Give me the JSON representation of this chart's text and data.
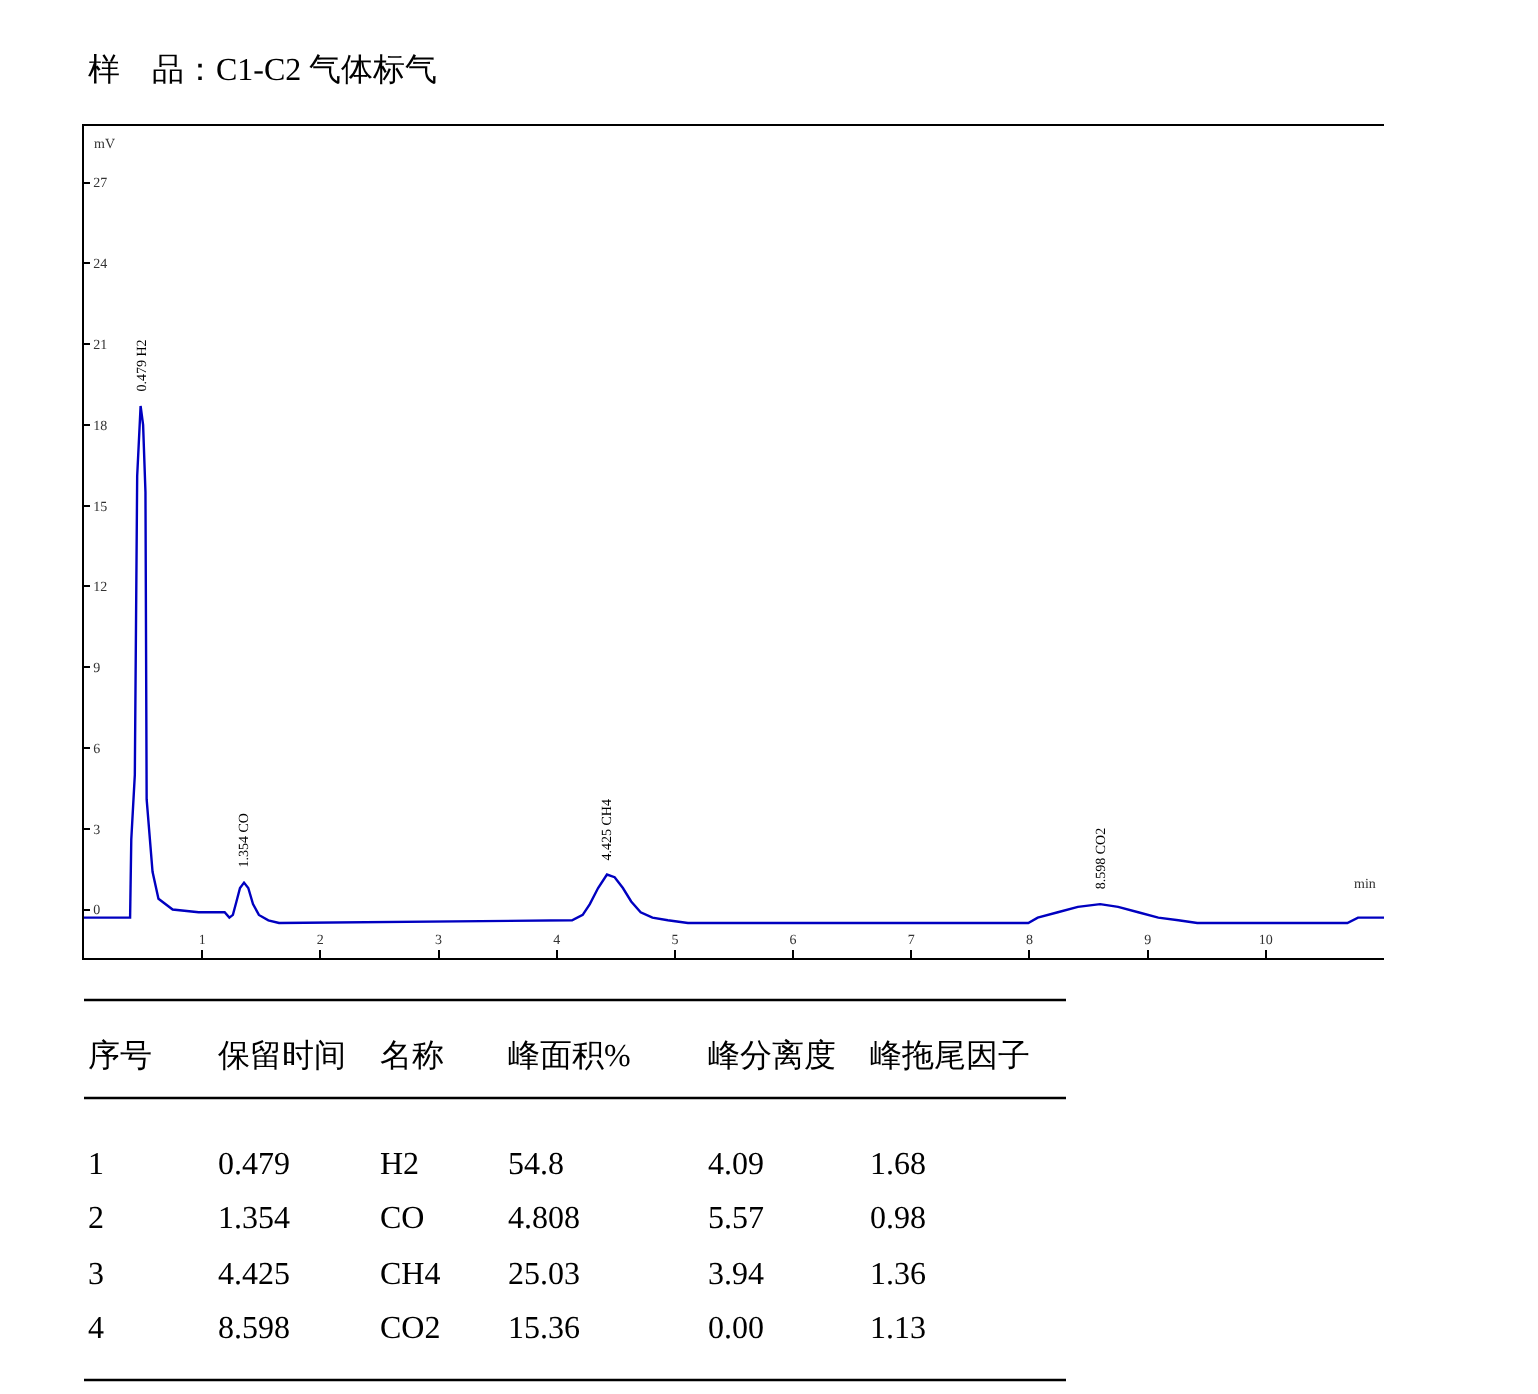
{
  "chart_data": {
    "type": "line",
    "subtitle": "样    品：C1-C2 气体标气",
    "xlabel": "min",
    "ylabel": "mV",
    "x": [
      0,
      0.39,
      0.4,
      0.43,
      0.45,
      0.479,
      0.5,
      0.52,
      0.53,
      0.58,
      0.63,
      0.75,
      0.97,
      1.19,
      1.23,
      1.26,
      1.29,
      1.32,
      1.354,
      1.39,
      1.43,
      1.48,
      1.56,
      1.65,
      4.13,
      4.22,
      4.28,
      4.35,
      4.425,
      4.49,
      4.56,
      4.63,
      4.71,
      4.81,
      4.94,
      5.11,
      7.99,
      8.07,
      8.24,
      8.41,
      8.598,
      8.75,
      8.92,
      9.09,
      9.26,
      9.42,
      10.69,
      10.78,
      11
    ],
    "series": [
      {
        "color": "#0000c0",
        "values": [
          -0.3,
          -0.3,
          2.6,
          5.0,
          16.1,
          18.7,
          18.0,
          15.5,
          4.1,
          1.4,
          0.4,
          0.0,
          -0.1,
          -0.1,
          -0.3,
          -0.2,
          0.3,
          0.8,
          1.0,
          0.8,
          0.2,
          -0.2,
          -0.4,
          -0.5,
          -0.4,
          -0.2,
          0.2,
          0.8,
          1.3,
          1.2,
          0.8,
          0.3,
          -0.1,
          -0.3,
          -0.4,
          -0.5,
          -0.5,
          -0.3,
          -0.1,
          0.1,
          0.2,
          0.1,
          -0.1,
          -0.3,
          -0.4,
          -0.5,
          -0.5,
          -0.3,
          -0.3
        ]
      }
    ],
    "xlim": [
      0,
      11
    ],
    "ylim": [
      -1.8,
      29.1
    ],
    "xticks": [
      1,
      2,
      3,
      4,
      5,
      6,
      7,
      8,
      9,
      10
    ],
    "yticks": [
      0,
      3,
      6,
      9,
      12,
      15,
      18,
      21,
      24,
      27
    ],
    "marker": "none",
    "line_style": "solid",
    "annotations": [
      {
        "text": "0.479 H2",
        "x": 0.479,
        "y": 18.7
      },
      {
        "text": "1.354 CO",
        "x": 1.354,
        "y": 1.0
      },
      {
        "text": "4.425 CH4",
        "x": 4.425,
        "y": 1.3
      },
      {
        "text": "8.598 CO2",
        "x": 8.598,
        "y": 0.2
      },
      "序号",
      "保留时间",
      "名称",
      "峰面积%",
      "峰分离度",
      "峰拖尾因子",
      "1",
      "0.479",
      "H2",
      "54.8",
      "4.09",
      "1.68",
      "2",
      "1.354",
      "CO",
      "4.808",
      "5.57",
      "0.98",
      "3",
      "4.425",
      "CH4",
      "25.03",
      "3.94",
      "1.36",
      "4",
      "8.598",
      "CO2",
      "15.36",
      "0.00",
      "1.13"
    ]
  }
}
